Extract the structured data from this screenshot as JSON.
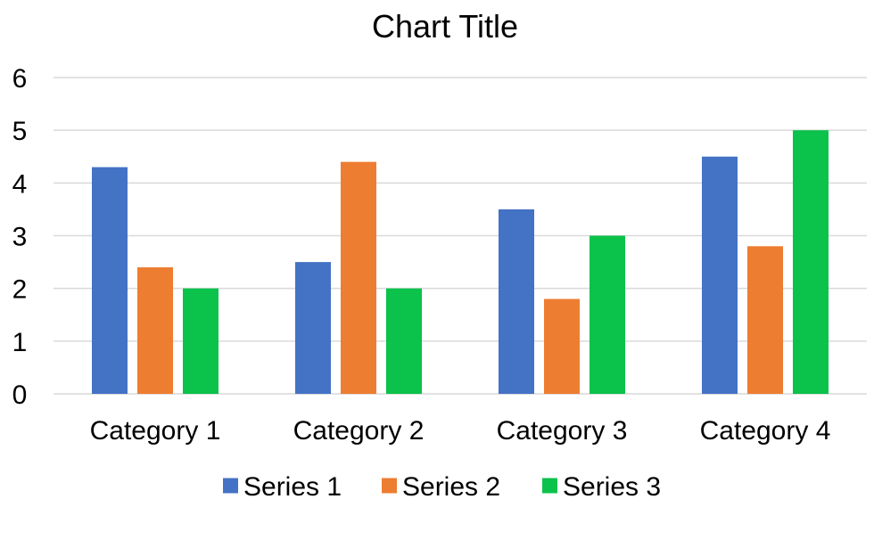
{
  "chart_data": {
    "type": "bar",
    "title": "Chart Title",
    "xlabel": "",
    "ylabel": "",
    "categories": [
      "Category 1",
      "Category 2",
      "Category 3",
      "Category 4"
    ],
    "series": [
      {
        "name": "Series 1",
        "values": [
          4.3,
          2.5,
          3.5,
          4.5
        ],
        "color": "#4472C4"
      },
      {
        "name": "Series 2",
        "values": [
          2.4,
          4.4,
          1.8,
          2.8
        ],
        "color": "#ED7D31"
      },
      {
        "name": "Series 3",
        "values": [
          2,
          2,
          3,
          5
        ],
        "color": "#0BC24A"
      }
    ],
    "ylim": [
      0,
      6
    ],
    "yticks": [
      "0",
      "1",
      "2",
      "3",
      "4",
      "5",
      "6"
    ],
    "grid": true,
    "gridColor": "#D9D9D9",
    "legend": "bottom"
  }
}
